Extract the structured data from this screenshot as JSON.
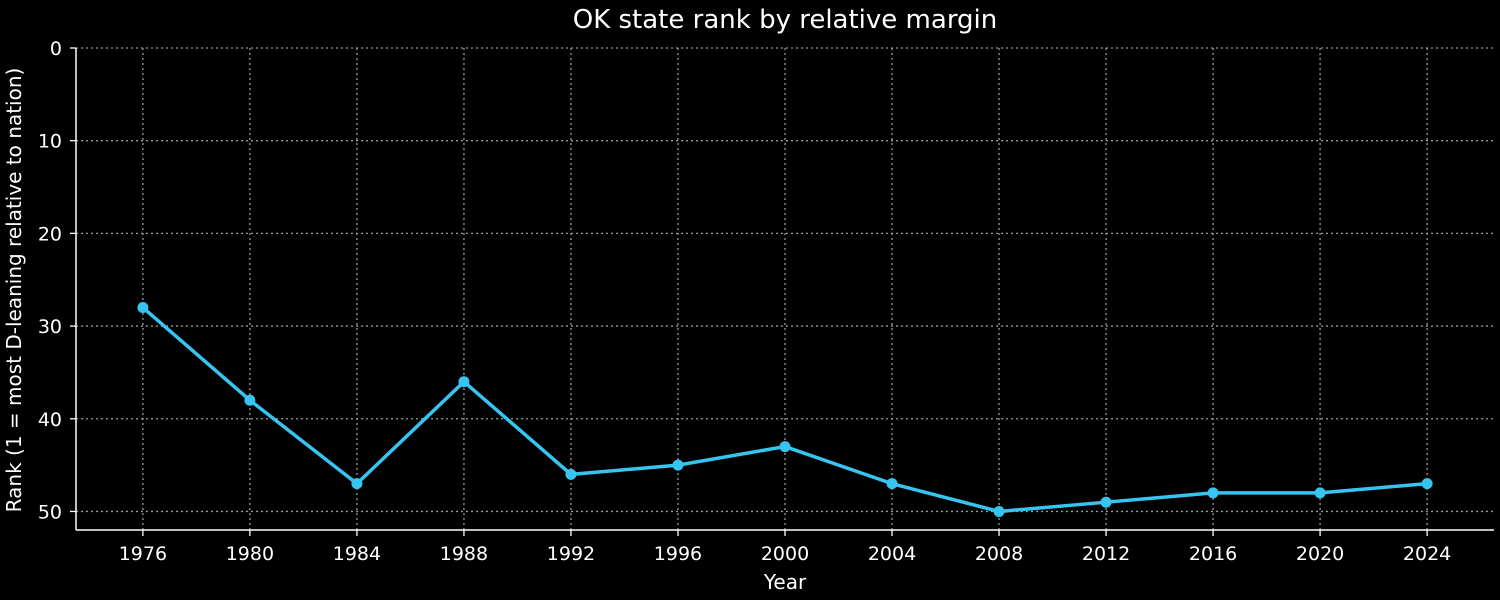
{
  "chart_data": {
    "type": "line",
    "title": "OK state rank by relative margin",
    "xlabel": "Year",
    "ylabel": "Rank (1 = most D-leaning relative to nation)",
    "x": [
      1976,
      1980,
      1984,
      1988,
      1992,
      1996,
      2000,
      2004,
      2008,
      2012,
      2016,
      2020,
      2024
    ],
    "series": [
      {
        "values": [
          28,
          38,
          47,
          36,
          46,
          45,
          43,
          47,
          50,
          49,
          48,
          48,
          47
        ],
        "color": "#36c5f0"
      }
    ],
    "xlim": [
      1973.5,
      2026.5
    ],
    "ylim": [
      52,
      0
    ],
    "y_inverted": true,
    "x_ticks": [
      "1976",
      "1980",
      "1984",
      "1988",
      "1992",
      "1996",
      "2000",
      "2004",
      "2008",
      "2012",
      "2016",
      "2020",
      "2024"
    ],
    "y_ticks": [
      "0",
      "10",
      "20",
      "30",
      "40",
      "50"
    ],
    "grid": true,
    "grid_style": "dotted",
    "background": "#000000",
    "foreground": "#ffffff",
    "grid_color": "#9a9a9a"
  }
}
